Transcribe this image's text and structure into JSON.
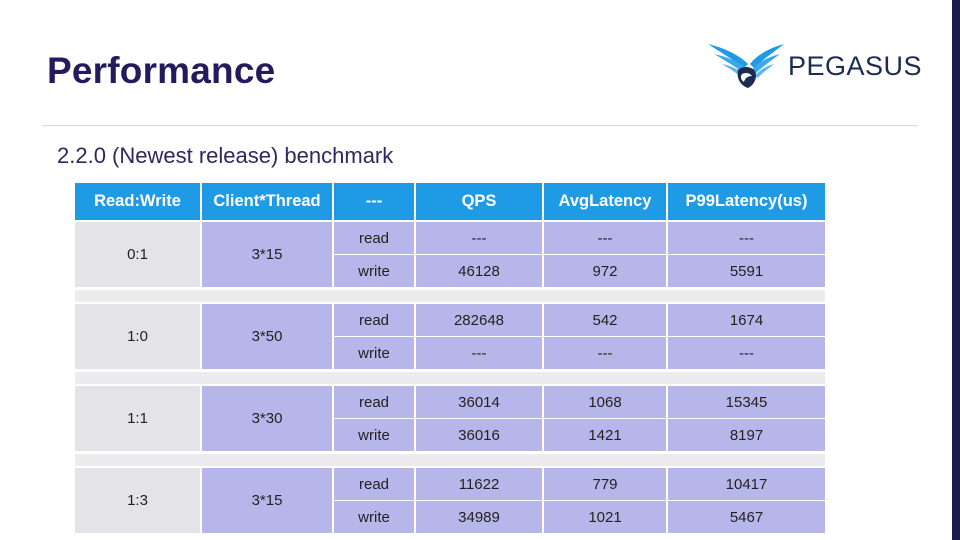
{
  "slide": {
    "title": "Performance",
    "subtitle": "2.2.0 (Newest release) benchmark",
    "logo": {
      "text": "PEGASUS",
      "icon": "pegasus-wing-logo",
      "color": "#1f9be6"
    }
  },
  "colors": {
    "header_bg": "#1f9be6",
    "title": "#221c5e",
    "cell_purple": "#b7b6ea",
    "cell_gray": "#e4e4e8"
  },
  "table": {
    "headers": [
      "Read:Write",
      "Client*Thread",
      "---",
      "QPS",
      "AvgLatency",
      "P99Latency(us)"
    ],
    "groups": [
      {
        "ratio": "0:1",
        "client_thread": "3*15",
        "rows": [
          {
            "op": "read",
            "qps": "---",
            "avg": "---",
            "p99": "---"
          },
          {
            "op": "write",
            "qps": "46128",
            "avg": "972",
            "p99": "5591"
          }
        ]
      },
      {
        "ratio": "1:0",
        "client_thread": "3*50",
        "rows": [
          {
            "op": "read",
            "qps": "282648",
            "avg": "542",
            "p99": "1674"
          },
          {
            "op": "write",
            "qps": "---",
            "avg": "---",
            "p99": "---"
          }
        ]
      },
      {
        "ratio": "1:1",
        "client_thread": "3*30",
        "rows": [
          {
            "op": "read",
            "qps": "36014",
            "avg": "1068",
            "p99": "15345"
          },
          {
            "op": "write",
            "qps": "36016",
            "avg": "1421",
            "p99": "8197"
          }
        ]
      },
      {
        "ratio": "1:3",
        "client_thread": "3*15",
        "rows": [
          {
            "op": "read",
            "qps": "11622",
            "avg": "779",
            "p99": "10417"
          },
          {
            "op": "write",
            "qps": "34989",
            "avg": "1021",
            "p99": "5467"
          }
        ]
      }
    ]
  }
}
